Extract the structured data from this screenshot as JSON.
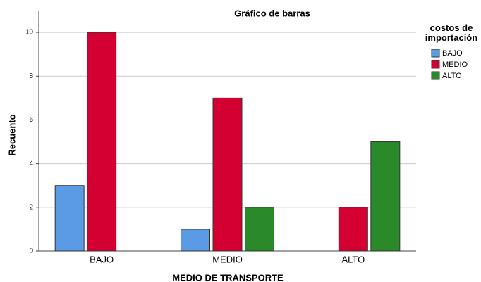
{
  "chart_data": {
    "type": "bar",
    "title": "Gráfico de barras",
    "xlabel": "MEDIO DE TRANSPORTE",
    "ylabel": "Recuento",
    "legend_title": "costos de importación",
    "categories": [
      "BAJO",
      "MEDIO",
      "ALTO"
    ],
    "series": [
      {
        "name": "BAJO",
        "color": "#5b9be6",
        "values": [
          3,
          1,
          null
        ]
      },
      {
        "name": "MEDIO",
        "color": "#d50032",
        "values": [
          10,
          7,
          2
        ]
      },
      {
        "name": "ALTO",
        "color": "#2a8a2a",
        "values": [
          null,
          2,
          5
        ]
      }
    ],
    "ylim": [
      0,
      11
    ],
    "yticks": [
      0,
      2,
      4,
      6,
      8,
      10
    ],
    "grid": true,
    "legend": "right"
  }
}
